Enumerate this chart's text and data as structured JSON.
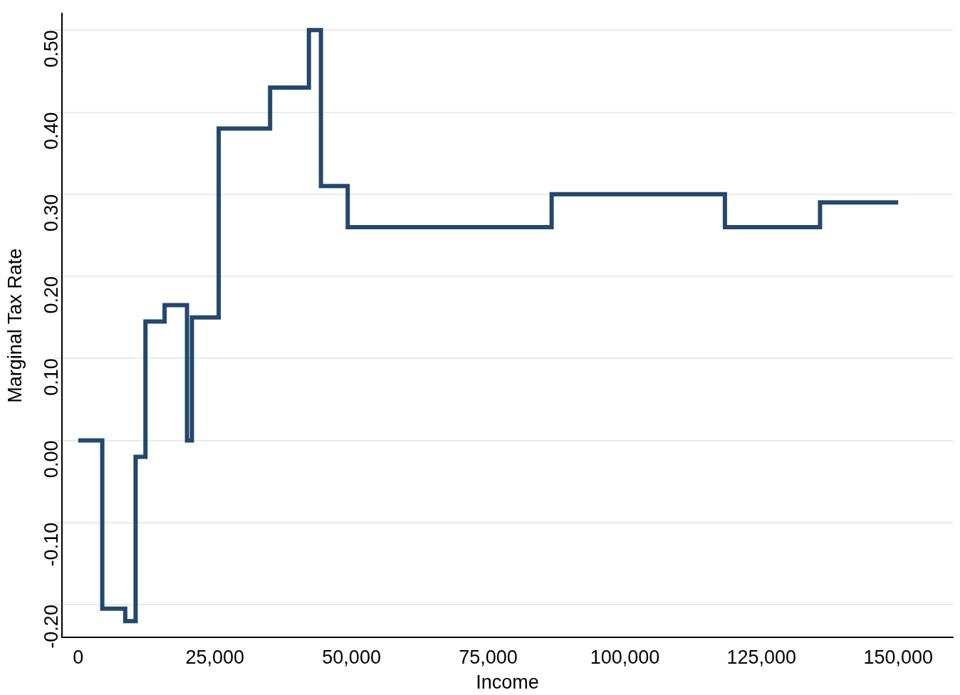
{
  "chart_data": {
    "type": "step",
    "xlabel": "Income",
    "ylabel": "Marginal Tax Rate",
    "x": [
      0,
      4400,
      8600,
      10500,
      12300,
      15800,
      19900,
      20800,
      25700,
      35100,
      42200,
      44400,
      49300,
      86600,
      118300,
      135700,
      150000
    ],
    "series": [
      {
        "color": "#24486c",
        "values": [
          0,
          -0.205,
          -0.22,
          -0.02,
          0.145,
          0.165,
          0,
          0.15,
          0.38,
          0.43,
          0.5,
          0.31,
          0.26,
          0.3,
          0.26,
          0.29,
          0.29
        ]
      }
    ],
    "xlim": [
      -3000,
      160000
    ],
    "xticks": [
      {
        "value": 0,
        "label": "0"
      },
      {
        "value": 25000,
        "label": "25,000"
      },
      {
        "value": 50000,
        "label": "50,000"
      },
      {
        "value": 75000,
        "label": "75,000"
      },
      {
        "value": 100000,
        "label": "100,000"
      },
      {
        "value": 125000,
        "label": "125,000"
      },
      {
        "value": 150000,
        "label": "150,000"
      }
    ],
    "ylim": [
      -0.24,
      0.52
    ],
    "yticks": [
      {
        "value": -0.2,
        "label": "-0.20"
      },
      {
        "value": -0.1,
        "label": "-0.10"
      },
      {
        "value": 0,
        "label": "0.00"
      },
      {
        "value": 0.1,
        "label": "0.10"
      },
      {
        "value": 0.2,
        "label": "0.20"
      },
      {
        "value": 0.3,
        "label": "0.30"
      },
      {
        "value": 0.4,
        "label": "0.40"
      },
      {
        "value": 0.5,
        "label": "0.50"
      }
    ],
    "grid": "y",
    "legend": false,
    "line_style": "solid",
    "marker": "none"
  }
}
